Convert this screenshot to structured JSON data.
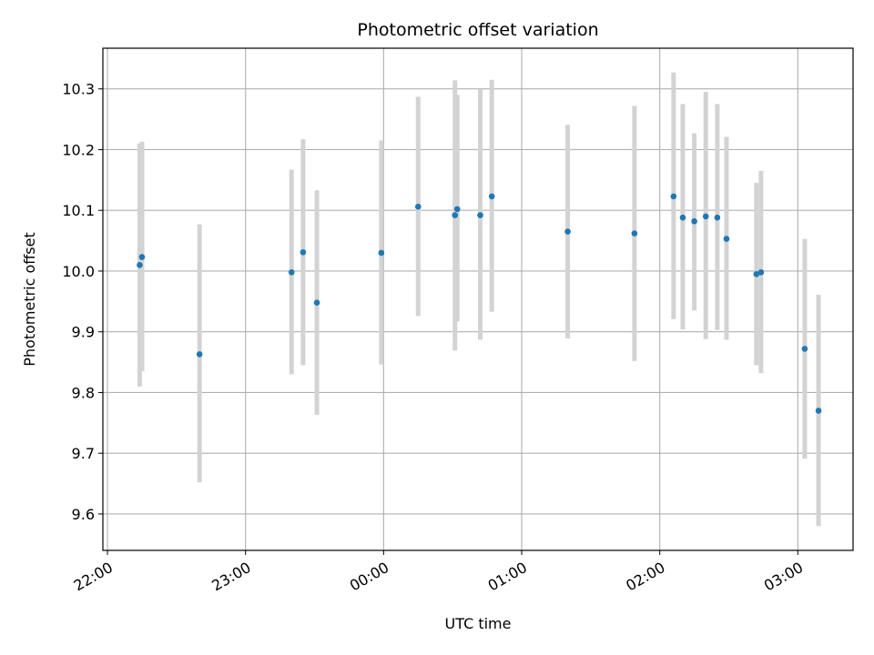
{
  "chart_data": {
    "type": "scatter",
    "title": "Photometric offset variation",
    "xlabel": "UTC time",
    "ylabel": "Photometric offset",
    "x_unit": "UTC",
    "xlim": [
      "21:58",
      "03:24"
    ],
    "ylim": [
      9.54,
      10.367
    ],
    "x_ticks": [
      "22:00",
      "23:00",
      "00:00",
      "01:00",
      "02:00",
      "03:00"
    ],
    "y_ticks": [
      9.6,
      9.7,
      9.8,
      9.9,
      10.0,
      10.1,
      10.2,
      10.3
    ],
    "grid": true,
    "marker_color": "#1f77b4",
    "errorbar_color": "#d3d3d3",
    "points": [
      {
        "t": "22:14",
        "y": 10.01,
        "lo": 9.81,
        "hi": 10.21
      },
      {
        "t": "22:15",
        "y": 10.023,
        "lo": 9.835,
        "hi": 10.213
      },
      {
        "t": "22:40",
        "y": 9.863,
        "lo": 9.652,
        "hi": 10.077
      },
      {
        "t": "23:20",
        "y": 9.998,
        "lo": 9.83,
        "hi": 10.167
      },
      {
        "t": "23:25",
        "y": 10.031,
        "lo": 9.845,
        "hi": 10.217
      },
      {
        "t": "23:31",
        "y": 9.948,
        "lo": 9.763,
        "hi": 10.133
      },
      {
        "t": "23:59",
        "y": 10.03,
        "lo": 9.846,
        "hi": 10.215
      },
      {
        "t": "00:15",
        "y": 10.106,
        "lo": 9.926,
        "hi": 10.287
      },
      {
        "t": "00:31",
        "y": 10.092,
        "lo": 9.869,
        "hi": 10.314
      },
      {
        "t": "00:32",
        "y": 10.102,
        "lo": 9.917,
        "hi": 10.29
      },
      {
        "t": "00:42",
        "y": 10.092,
        "lo": 9.887,
        "hi": 10.299
      },
      {
        "t": "00:47",
        "y": 10.123,
        "lo": 9.933,
        "hi": 10.315
      },
      {
        "t": "01:20",
        "y": 10.065,
        "lo": 9.889,
        "hi": 10.241
      },
      {
        "t": "01:49",
        "y": 10.062,
        "lo": 9.852,
        "hi": 10.272
      },
      {
        "t": "02:06",
        "y": 10.123,
        "lo": 9.921,
        "hi": 10.327
      },
      {
        "t": "02:10",
        "y": 10.088,
        "lo": 9.904,
        "hi": 10.275
      },
      {
        "t": "02:15",
        "y": 10.082,
        "lo": 9.935,
        "hi": 10.227
      },
      {
        "t": "02:20",
        "y": 10.09,
        "lo": 9.888,
        "hi": 10.295
      },
      {
        "t": "02:25",
        "y": 10.088,
        "lo": 9.903,
        "hi": 10.275
      },
      {
        "t": "02:29",
        "y": 10.053,
        "lo": 9.887,
        "hi": 10.221
      },
      {
        "t": "02:42",
        "y": 9.995,
        "lo": 9.845,
        "hi": 10.145
      },
      {
        "t": "02:44",
        "y": 9.998,
        "lo": 9.832,
        "hi": 10.165
      },
      {
        "t": "03:03",
        "y": 9.872,
        "lo": 9.691,
        "hi": 10.053
      },
      {
        "t": "03:09",
        "y": 9.77,
        "lo": 9.58,
        "hi": 9.961
      }
    ]
  }
}
